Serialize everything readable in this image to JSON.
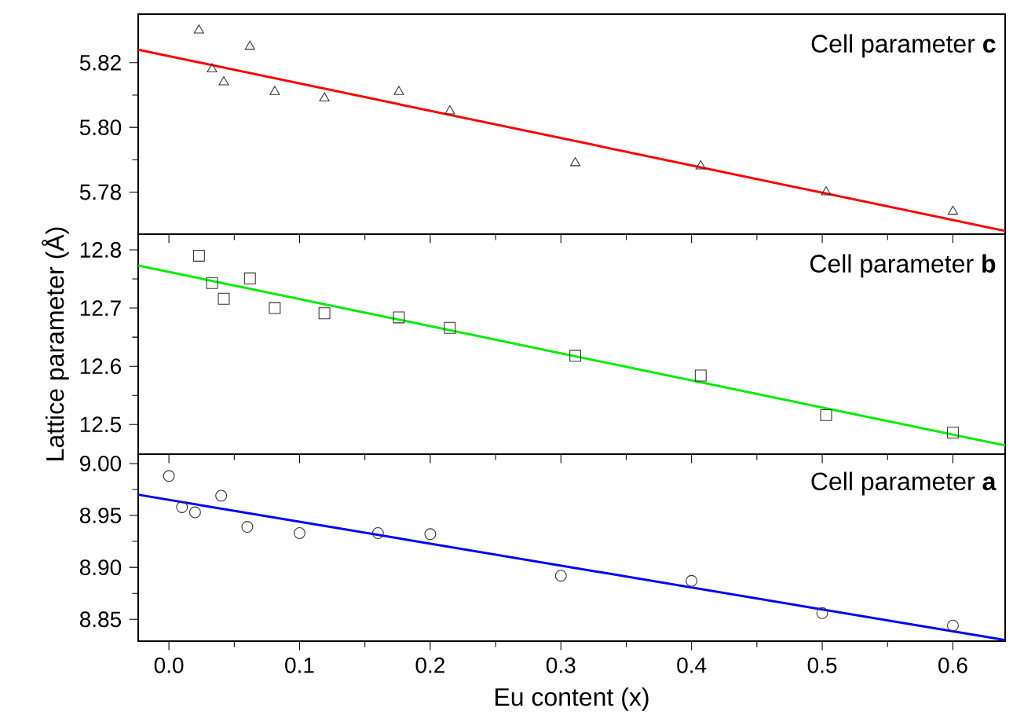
{
  "chart_data": [
    {
      "type": "scatter",
      "annotations": [
        "Cell parameter **c**"
      ],
      "xlim": [
        -0.0235,
        0.64
      ],
      "ylim": [
        5.767,
        5.835
      ],
      "yticks": [
        5.78,
        {
          "value": 5.8,
          "label": "5.80"
        },
        5.82
      ],
      "tick_labels": "y",
      "grid": false,
      "series": [
        {
          "type": "scatter",
          "marker": "triangle",
          "color": "#333333",
          "x": [
            0.023,
            0.033,
            0.042,
            0.062,
            0.081,
            0.119,
            0.176,
            0.215,
            0.311,
            0.407,
            0.503,
            0.6
          ],
          "values": [
            5.83,
            5.818,
            5.814,
            5.825,
            5.811,
            5.809,
            5.811,
            5.805,
            5.789,
            5.788,
            5.78,
            5.774
          ]
        },
        {
          "type": "line",
          "marker": "none",
          "color": "#ff0000",
          "x": [
            -0.0235,
            0.64
          ],
          "values": [
            5.824,
            5.768
          ]
        }
      ]
    },
    {
      "type": "scatter",
      "annotations": [
        "Cell parameter **b**"
      ],
      "ylabel": "Lattice parameter (Å)",
      "xlim": [
        -0.0235,
        0.64
      ],
      "ylim": [
        12.449,
        12.827
      ],
      "yticks": [
        12.5,
        12.6,
        12.7,
        12.8
      ],
      "tick_labels": "y",
      "grid": false,
      "series": [
        {
          "type": "scatter",
          "marker": "square",
          "color": "#333333",
          "x": [
            0.023,
            0.033,
            0.042,
            0.062,
            0.081,
            0.119,
            0.176,
            0.215,
            0.311,
            0.407,
            0.503,
            0.6
          ],
          "values": [
            12.79,
            12.743,
            12.716,
            12.751,
            12.7,
            12.691,
            12.684,
            12.666,
            12.618,
            12.584,
            12.516,
            12.486
          ]
        },
        {
          "type": "line",
          "marker": "none",
          "color": "#00ee00",
          "x": [
            -0.0235,
            0.64
          ],
          "values": [
            12.773,
            12.464
          ]
        }
      ]
    },
    {
      "type": "scatter",
      "annotations": [
        "Cell parameter **a**"
      ],
      "xlabel": "Eu content (x)",
      "xlim": [
        -0.0235,
        0.64
      ],
      "ylim": [
        8.829,
        9.009
      ],
      "xticks": [
        {
          "value": 0,
          "label": "0.0"
        },
        0.1,
        0.2,
        0.3,
        0.4,
        0.5,
        0.6
      ],
      "yticks": [
        {
          "value": 8.85,
          "label": "8.85"
        },
        {
          "value": 8.9,
          "label": "8.90"
        },
        {
          "value": 8.95,
          "label": "8.95"
        },
        {
          "value": 9,
          "label": "9.00"
        }
      ],
      "grid": false,
      "series": [
        {
          "type": "scatter",
          "marker": "circle",
          "color": "#333333",
          "x": [
            0,
            0.01,
            0.02,
            0.04,
            0.06,
            0.1,
            0.16,
            0.2,
            0.3,
            0.4,
            0.5,
            0.6
          ],
          "values": [
            8.988,
            8.958,
            8.953,
            8.969,
            8.939,
            8.933,
            8.933,
            8.932,
            8.892,
            8.887,
            8.856,
            8.844
          ]
        },
        {
          "type": "line",
          "marker": "none",
          "color": "#0000ff",
          "x": [
            -0.0235,
            0.64
          ],
          "values": [
            8.97,
            8.83
          ]
        }
      ]
    }
  ]
}
